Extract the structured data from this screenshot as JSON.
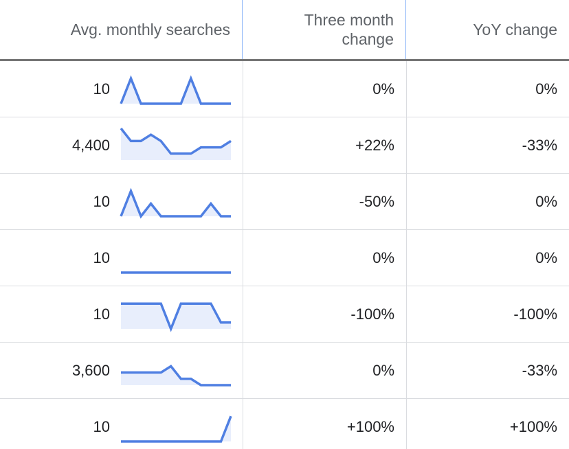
{
  "headers": {
    "avg": "Avg. monthly searches",
    "three_month_line1": "Three month",
    "three_month_line2": "change",
    "yoy": "YoY change"
  },
  "colors": {
    "spark_line": "#4f7fe2",
    "spark_fill": "#e8eefc"
  },
  "rows": [
    {
      "avg": "10",
      "three_month": "0%",
      "yoy": "0%",
      "trend": [
        1,
        5,
        1,
        1,
        1,
        1,
        1,
        5,
        1,
        1,
        1,
        1
      ]
    },
    {
      "avg": "4,400",
      "three_month": "+22%",
      "yoy": "-33%",
      "trend": [
        6,
        4,
        4,
        5,
        4,
        2,
        2,
        2,
        3,
        3,
        3,
        4
      ]
    },
    {
      "avg": "10",
      "three_month": "-50%",
      "yoy": "0%",
      "trend": [
        1,
        5,
        1,
        3,
        1,
        1,
        1,
        1,
        1,
        3,
        1,
        1
      ]
    },
    {
      "avg": "10",
      "three_month": "0%",
      "yoy": "0%",
      "trend": [
        1,
        1,
        1,
        1,
        1,
        1,
        1,
        1,
        1,
        1,
        1,
        1
      ]
    },
    {
      "avg": "10",
      "three_month": "-100%",
      "yoy": "-100%",
      "trend": [
        5,
        5,
        5,
        5,
        5,
        1,
        5,
        5,
        5,
        5,
        2,
        2
      ]
    },
    {
      "avg": "3,600",
      "three_month": "0%",
      "yoy": "-33%",
      "trend": [
        3,
        3,
        3,
        3,
        3,
        4,
        2,
        2,
        1,
        1,
        1,
        1
      ]
    },
    {
      "avg": "10",
      "three_month": "+100%",
      "yoy": "+100%",
      "trend": [
        1,
        1,
        1,
        1,
        1,
        1,
        1,
        1,
        1,
        1,
        1,
        5
      ]
    }
  ]
}
